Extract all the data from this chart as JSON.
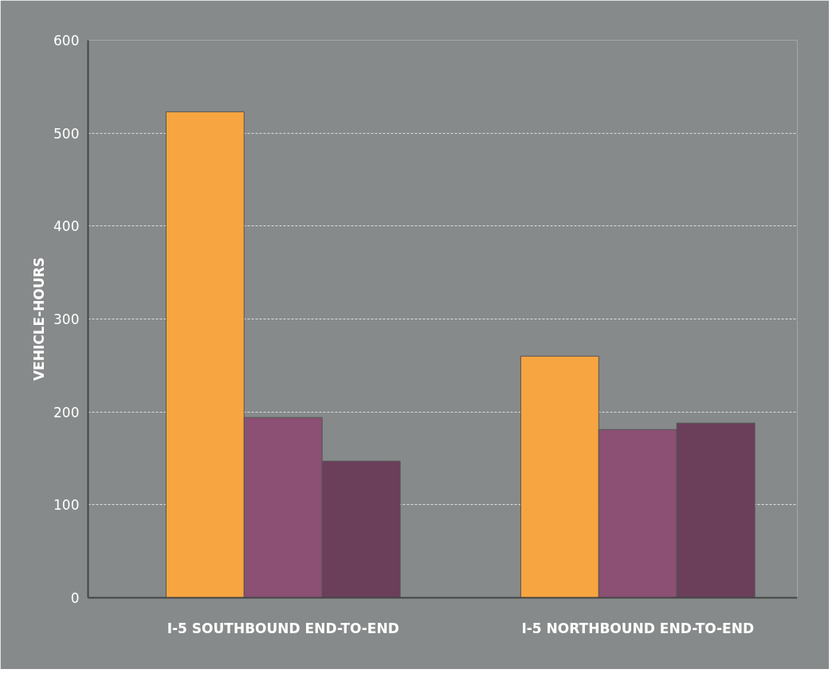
{
  "chart_data": {
    "type": "bar",
    "ylabel": "VEHICLE-HOURS",
    "categories": [
      "I-5 SOUTHBOUND END-TO-END",
      "I-5 NORTHBOUND END-TO-END"
    ],
    "series": [
      {
        "color": "#f7a540",
        "values": [
          523,
          260
        ]
      },
      {
        "color": "#8b5073",
        "values": [
          194,
          181
        ]
      },
      {
        "color": "#6b3e5a",
        "values": [
          147,
          188
        ]
      }
    ],
    "ylim": [
      0,
      600
    ],
    "yticks": [
      0,
      100,
      200,
      300,
      400,
      500,
      600
    ],
    "grid": "y"
  }
}
